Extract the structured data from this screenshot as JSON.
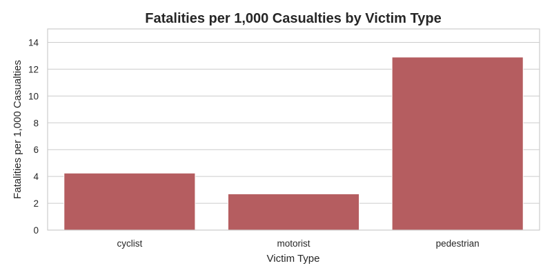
{
  "chart_data": {
    "type": "bar",
    "title": "Fatalities per 1,000 Casualties by Victim Type",
    "xlabel": "Victim Type",
    "ylabel": "Fatalities per 1,000 Casualties",
    "categories": [
      "cyclist",
      "motorist",
      "pedestrian"
    ],
    "values": [
      4.25,
      2.7,
      12.9
    ],
    "ylim": [
      0,
      15
    ],
    "yticks": [
      0,
      2,
      4,
      6,
      8,
      10,
      12,
      14
    ],
    "bar_color": "#b55d60",
    "grid": true,
    "grid_axis": "y",
    "legend": false
  }
}
